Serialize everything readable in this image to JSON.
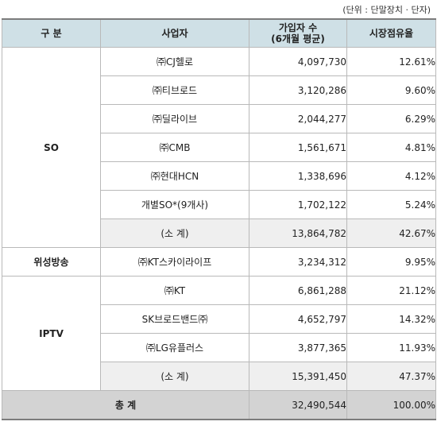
{
  "unit_note": "(단위 : 단말장치 · 단자)",
  "headers": {
    "category": "구  분",
    "operator": "사업자",
    "subscribers_line1": "가입자 수",
    "subscribers_line2": "(6개월 평균)",
    "share": "시장점유율"
  },
  "groups": {
    "so": "SO",
    "satellite": "위성방송",
    "iptv": "IPTV"
  },
  "rows": [
    {
      "name": "㈜CJ헬로",
      "subs": "4,097,730",
      "share": "12.61%"
    },
    {
      "name": "㈜티브로드",
      "subs": "3,120,286",
      "share": "9.60%"
    },
    {
      "name": "㈜딜라이브",
      "subs": "2,044,277",
      "share": "6.29%"
    },
    {
      "name": "㈜CMB",
      "subs": "1,561,671",
      "share": "4.81%"
    },
    {
      "name": "㈜현대HCN",
      "subs": "1,338,696",
      "share": "4.12%"
    },
    {
      "name": "개별SO*(9개사)",
      "subs": "1,702,122",
      "share": "5.24%"
    },
    {
      "name": "(소  계)",
      "subs": "13,864,782",
      "share": "42.67%"
    },
    {
      "name": "㈜KT스카이라이프",
      "subs": "3,234,312",
      "share": "9.95%"
    },
    {
      "name": "㈜KT",
      "subs": "6,861,288",
      "share": "21.12%"
    },
    {
      "name": "SK브로드밴드㈜",
      "subs": "4,652,797",
      "share": "14.32%"
    },
    {
      "name": "㈜LG유플러스",
      "subs": "3,877,365",
      "share": "11.93%"
    },
    {
      "name": "(소  계)",
      "subs": "15,391,450",
      "share": "47.37%"
    }
  ],
  "total": {
    "label": "총  계",
    "subs": "32,490,544",
    "share": "100.00%"
  }
}
